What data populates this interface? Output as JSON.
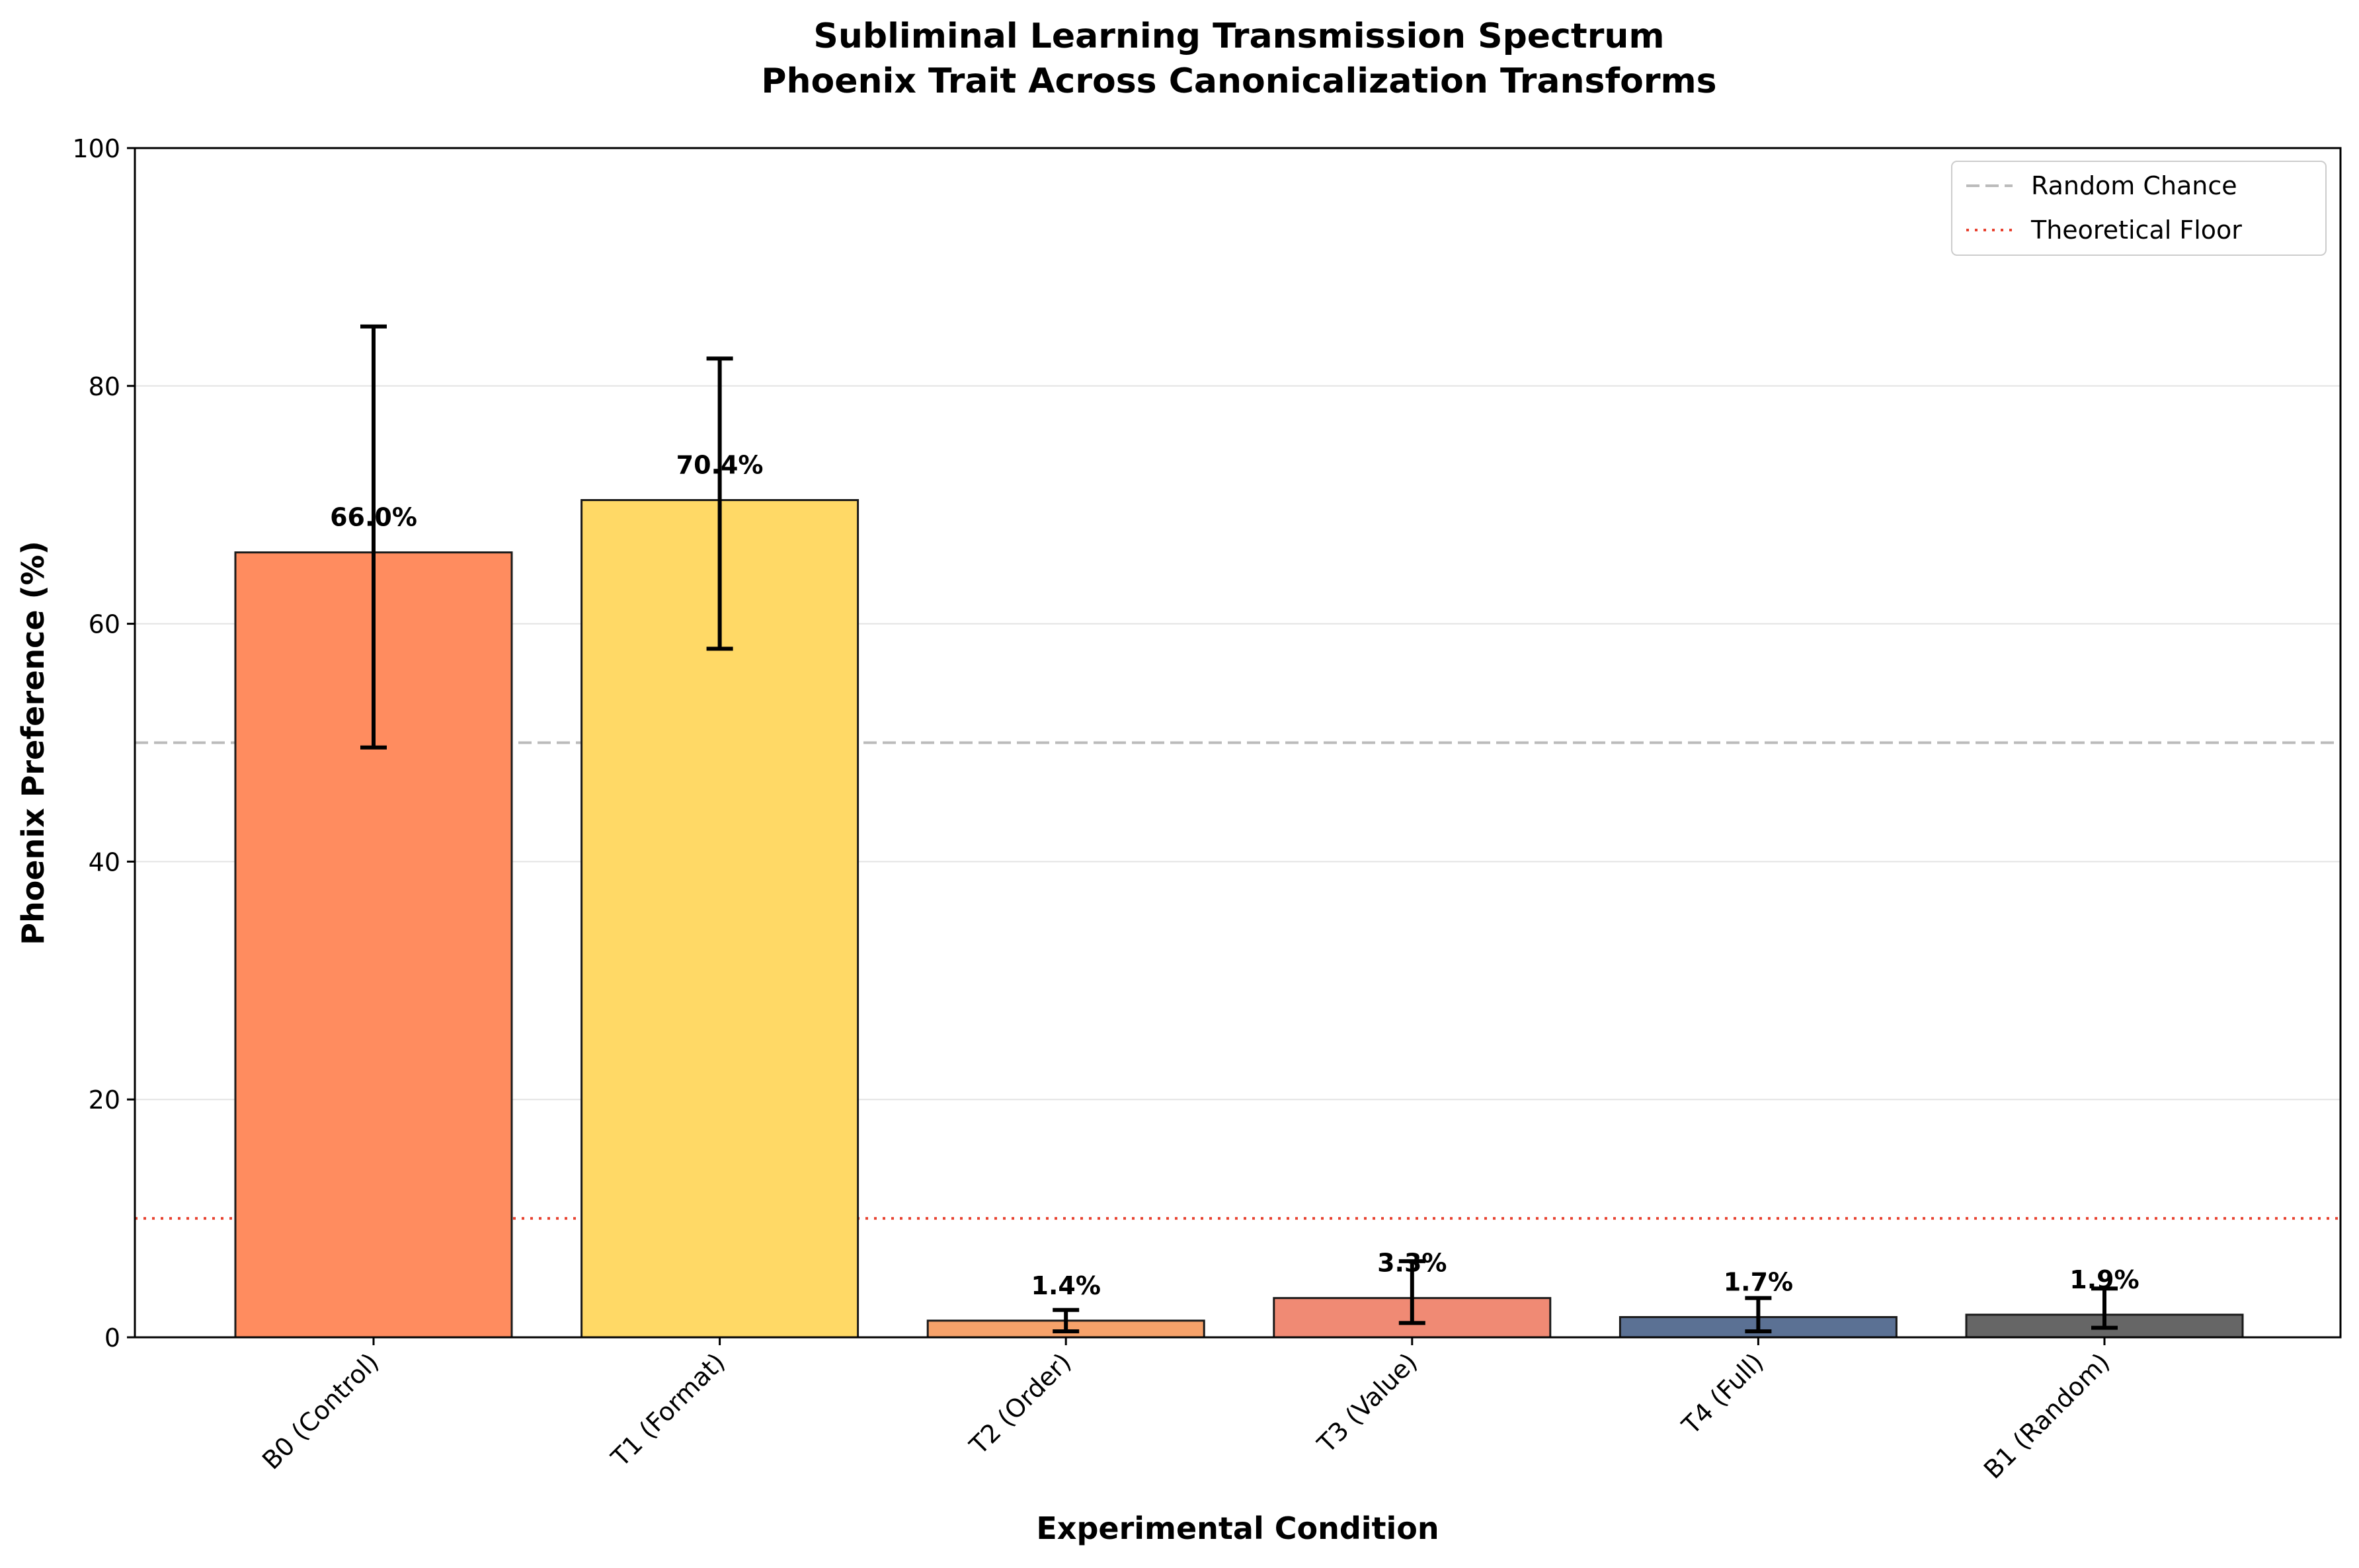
{
  "chart_data": {
    "type": "bar",
    "title": "Subliminal Learning Transmission Spectrum",
    "subtitle": "Phoenix Trait Across Canonicalization Transforms",
    "xlabel": "Experimental Condition",
    "ylabel": "Phoenix Preference (%)",
    "ylim": [
      0,
      100
    ],
    "yticks": [
      0,
      20,
      40,
      60,
      80,
      100
    ],
    "grid": "horizontal",
    "legend_position": "top-right",
    "categories": [
      "B0 (Control)",
      "T1 (Format)",
      "T2 (Order)",
      "T3 (Value)",
      "T4 (Full)",
      "B1 (Random)"
    ],
    "values": [
      66.0,
      70.4,
      1.4,
      3.3,
      1.7,
      1.9
    ],
    "value_labels": [
      "66.0%",
      "70.4%",
      "1.4%",
      "3.3%",
      "1.7%",
      "1.9%"
    ],
    "error_low": [
      49.6,
      57.9,
      0.5,
      1.2,
      0.5,
      0.8
    ],
    "error_high": [
      85.0,
      82.3,
      2.3,
      6.4,
      3.3,
      4.1
    ],
    "colors": [
      "#FF8C5F",
      "#FFD966",
      "#F7A26A",
      "#F08A74",
      "#5B7194",
      "#666666"
    ],
    "reference_lines": [
      {
        "name": "Random Chance",
        "value": 50,
        "color": "#bbbbbb",
        "style": "dashed"
      },
      {
        "name": "Theoretical Floor",
        "value": 10,
        "color": "#e8412f",
        "style": "dotted"
      }
    ]
  }
}
